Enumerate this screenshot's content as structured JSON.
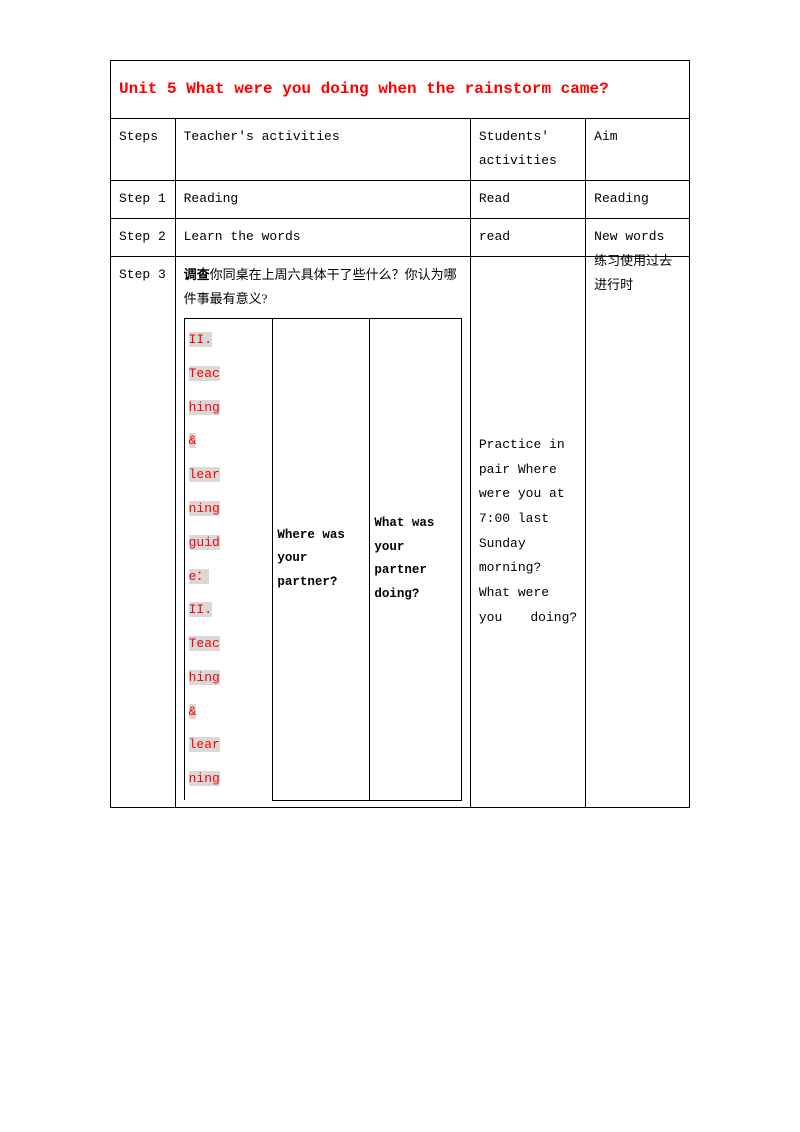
{
  "title": "Unit 5 What were you doing when the rainstorm came?",
  "header": {
    "steps": "Steps",
    "teacher_activities": "Teacher's activities",
    "students_activities": "Students' activities",
    "aim": "Aim"
  },
  "rows": [
    {
      "step": "Step 1",
      "teacher": "Reading",
      "students": "Read",
      "aim": "Reading"
    },
    {
      "step": "Step 2",
      "teacher": "Learn the words",
      "students": "read",
      "aim": "New words"
    }
  ],
  "step3": {
    "label": "Step 3",
    "survey_bold": "调查",
    "survey_rest": "你同桌在上周六具体干了些什么？你认为哪件事最有意义?",
    "nested": {
      "col1_text": "II. Teaching & learning guide： II. Teaching & learning",
      "col2_text": "Where was your partner?",
      "col3_text": "What was your partner doing?"
    },
    "students": "Practice in pair Where were you at 7:00 last Sunday morning? What were you doing?",
    "aim": "练习使用过去进行时"
  }
}
